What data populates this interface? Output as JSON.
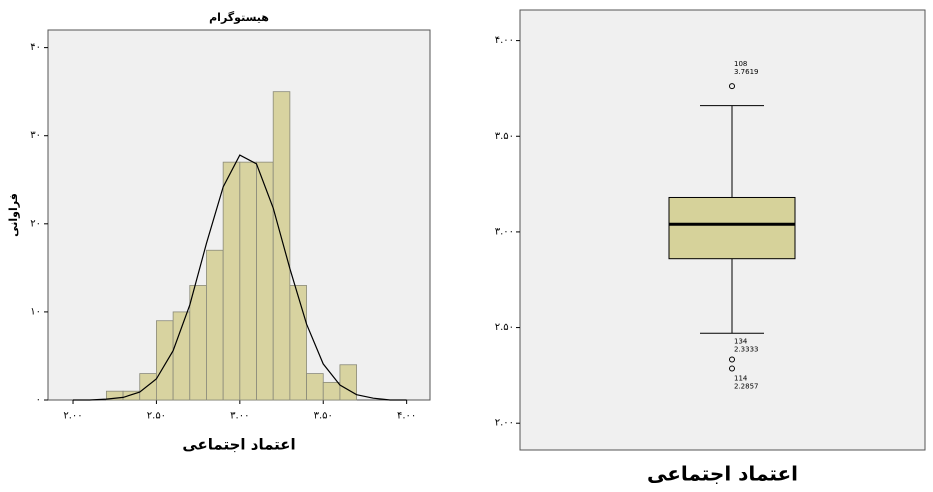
{
  "chart_data": [
    {
      "type": "histogram",
      "title": "هیستوگرام",
      "x_label": "اعتماد اجتماعی",
      "y_label": "فراوانی",
      "bins": [
        2.2,
        2.3,
        2.4,
        2.5,
        2.6,
        2.7,
        2.8,
        2.9,
        3.0,
        3.1,
        3.2,
        3.3,
        3.4,
        3.5,
        3.6,
        3.7
      ],
      "values": [
        1,
        1,
        3,
        9,
        10,
        13,
        17,
        27,
        27,
        27,
        35,
        13,
        3,
        2,
        4
      ],
      "color": "#d8d3a0",
      "curve": {
        "x": [
          2.0,
          2.1,
          2.2,
          2.3,
          2.4,
          2.5,
          2.6,
          2.7,
          2.8,
          2.9,
          3.0,
          3.1,
          3.2,
          3.3,
          3.4,
          3.5,
          3.6,
          3.7,
          3.8,
          3.9,
          4.0
        ],
        "values": [
          0,
          0,
          0.1,
          0.3,
          0.9,
          2.4,
          5.6,
          10.8,
          17.8,
          24.2,
          27.8,
          26.8,
          21.8,
          14.9,
          8.6,
          4.1,
          1.7,
          0.6,
          0.2,
          0,
          0
        ]
      },
      "xlim": [
        1.85,
        4.14
      ],
      "ylim": [
        0,
        42
      ],
      "xticks": [
        {
          "value": 2.0,
          "label": "۲.۰۰"
        },
        {
          "value": 2.5,
          "label": "۲.۵۰"
        },
        {
          "value": 3.0,
          "label": "۳.۰۰"
        },
        {
          "value": 3.5,
          "label": "۳.۵۰"
        },
        {
          "value": 4.0,
          "label": "۴.۰۰"
        }
      ],
      "yticks": [
        {
          "value": 0,
          "label": "۰"
        },
        {
          "value": 10,
          "label": "۱۰"
        },
        {
          "value": 20,
          "label": "۲۰"
        },
        {
          "value": 30,
          "label": "۳۰"
        },
        {
          "value": 40,
          "label": "۴۰"
        }
      ]
    },
    {
      "type": "box",
      "x_label": "اعتماد اجتماعی",
      "color": "#d6d29a",
      "whisker_low": 2.47,
      "q1": 2.86,
      "median": 3.04,
      "q3": 3.18,
      "whisker_high": 3.66,
      "outliers": [
        {
          "id": "108",
          "value": 3.7619
        },
        {
          "id": "134",
          "value": 2.3333
        },
        {
          "id": "114",
          "value": 2.2857
        }
      ],
      "ylim": [
        1.86,
        4.16
      ],
      "yticks": [
        {
          "value": 2.0,
          "label": "۲.۰۰"
        },
        {
          "value": 2.5,
          "label": "۲.۵۰"
        },
        {
          "value": 3.0,
          "label": "۳.۰۰"
        },
        {
          "value": 3.5,
          "label": "۳.۵۰"
        },
        {
          "value": 4.0,
          "label": "۴.۰۰"
        }
      ]
    }
  ]
}
